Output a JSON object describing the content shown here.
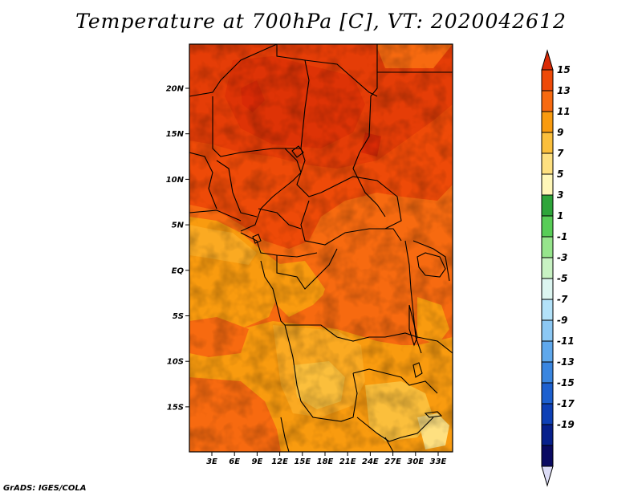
{
  "title": "Temperature at 700hPa [C], VT: 2020042612",
  "footer": "GrADS: IGES/COLA",
  "map": {
    "lat_labels": [
      "20N",
      "15N",
      "10N",
      "5N",
      "EQ",
      "5S",
      "10S",
      "15S"
    ],
    "lon_labels": [
      "3E",
      "6E",
      "9E",
      "12E",
      "15E",
      "18E",
      "21E",
      "24E",
      "27E",
      "30E",
      "33E"
    ]
  },
  "colorbar": {
    "labels": [
      "15",
      "13",
      "11",
      "9",
      "7",
      "5",
      "3",
      "1",
      "-1",
      "-3",
      "-5",
      "-7",
      "-9",
      "-11",
      "-13",
      "-15",
      "-17",
      "-19"
    ],
    "colors": [
      "#d92a06",
      "#ee4a08",
      "#f76a10",
      "#f99b0f",
      "#fbbf3c",
      "#fee080",
      "#fff7b8",
      "#2ea53a",
      "#58cd57",
      "#96e58c",
      "#c8f2c3",
      "#dcf5f0",
      "#b3e2f9",
      "#8cc8f4",
      "#5fa8ec",
      "#3a86e0",
      "#1d60cf",
      "#0e40b6",
      "#07208c",
      "#0a0a62",
      "#dcdcf6"
    ]
  }
}
